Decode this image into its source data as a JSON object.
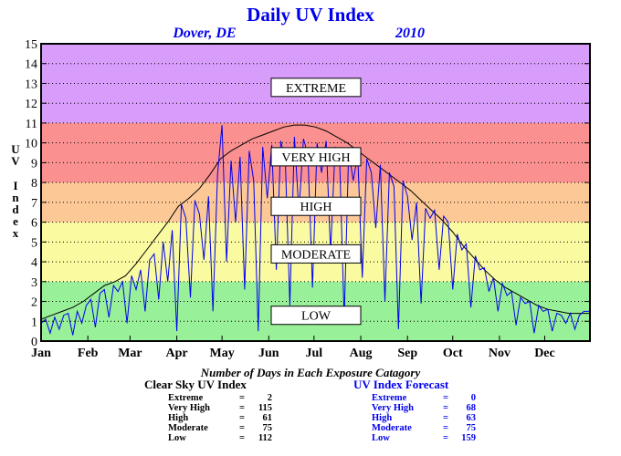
{
  "chart_data": {
    "type": "line",
    "title": "Daily UV Index",
    "location": "Dover, DE",
    "year": "2010",
    "ylabel": "UV Index",
    "ylim": [
      0,
      15
    ],
    "yticks": [
      0,
      1,
      2,
      3,
      4,
      5,
      6,
      7,
      8,
      9,
      10,
      11,
      12,
      13,
      14,
      15
    ],
    "xlim": [
      1,
      365
    ],
    "months": [
      {
        "label": "Jan",
        "start_day": 1
      },
      {
        "label": "Feb",
        "start_day": 32
      },
      {
        "label": "Mar",
        "start_day": 60
      },
      {
        "label": "Apr",
        "start_day": 91
      },
      {
        "label": "May",
        "start_day": 121
      },
      {
        "label": "Jun",
        "start_day": 152
      },
      {
        "label": "Jul",
        "start_day": 182
      },
      {
        "label": "Aug",
        "start_day": 213
      },
      {
        "label": "Sep",
        "start_day": 244
      },
      {
        "label": "Oct",
        "start_day": 274
      },
      {
        "label": "Nov",
        "start_day": 305
      },
      {
        "label": "Dec",
        "start_day": 335
      }
    ],
    "grid": true,
    "bands": [
      {
        "label": "LOW",
        "from": 0,
        "to": 3,
        "color": "#98f098",
        "label_y": 1.3
      },
      {
        "label": "MODERATE",
        "from": 3,
        "to": 6,
        "color": "#fafaa0",
        "label_y": 4.4
      },
      {
        "label": "HIGH",
        "from": 6,
        "to": 8,
        "color": "#fcc896",
        "label_y": 6.8
      },
      {
        "label": "VERY HIGH",
        "from": 8,
        "to": 11,
        "color": "#fa9090",
        "label_y": 9.3
      },
      {
        "label": "EXTREME",
        "from": 11,
        "to": 15,
        "color": "#d89cfa",
        "label_y": 12.8
      }
    ],
    "series": [
      {
        "name": "Clear Sky UV Index",
        "color": "#000000",
        "points": [
          [
            1,
            1.1
          ],
          [
            8,
            1.3
          ],
          [
            15,
            1.5
          ],
          [
            22,
            1.7
          ],
          [
            29,
            2.0
          ],
          [
            36,
            2.4
          ],
          [
            43,
            2.8
          ],
          [
            50,
            3.0
          ],
          [
            57,
            3.3
          ],
          [
            64,
            3.9
          ],
          [
            71,
            4.6
          ],
          [
            78,
            5.3
          ],
          [
            85,
            6.0
          ],
          [
            92,
            6.8
          ],
          [
            99,
            7.2
          ],
          [
            106,
            7.7
          ],
          [
            113,
            8.4
          ],
          [
            120,
            9.2
          ],
          [
            127,
            9.6
          ],
          [
            134,
            9.9
          ],
          [
            141,
            10.2
          ],
          [
            148,
            10.4
          ],
          [
            155,
            10.6
          ],
          [
            162,
            10.8
          ],
          [
            169,
            10.9
          ],
          [
            176,
            10.9
          ],
          [
            183,
            10.8
          ],
          [
            190,
            10.6
          ],
          [
            197,
            10.3
          ],
          [
            204,
            10.0
          ],
          [
            211,
            9.6
          ],
          [
            218,
            9.2
          ],
          [
            225,
            8.8
          ],
          [
            232,
            8.4
          ],
          [
            239,
            8.0
          ],
          [
            246,
            7.6
          ],
          [
            253,
            7.1
          ],
          [
            260,
            6.6
          ],
          [
            267,
            6.1
          ],
          [
            274,
            5.5
          ],
          [
            281,
            4.8
          ],
          [
            288,
            4.2
          ],
          [
            295,
            3.6
          ],
          [
            302,
            3.1
          ],
          [
            309,
            2.7
          ],
          [
            316,
            2.4
          ],
          [
            323,
            2.1
          ],
          [
            330,
            1.8
          ],
          [
            337,
            1.6
          ],
          [
            344,
            1.5
          ],
          [
            351,
            1.4
          ],
          [
            358,
            1.4
          ],
          [
            365,
            1.4
          ]
        ]
      },
      {
        "name": "UV Index Forecast",
        "color": "#0000ee",
        "points": [
          [
            1,
            0.9
          ],
          [
            4,
            1.1
          ],
          [
            7,
            0.4
          ],
          [
            10,
            1.2
          ],
          [
            13,
            0.6
          ],
          [
            16,
            1.3
          ],
          [
            19,
            1.4
          ],
          [
            22,
            0.3
          ],
          [
            25,
            1.5
          ],
          [
            28,
            0.9
          ],
          [
            31,
            1.8
          ],
          [
            34,
            2.1
          ],
          [
            37,
            0.7
          ],
          [
            40,
            2.4
          ],
          [
            43,
            2.6
          ],
          [
            46,
            1.2
          ],
          [
            49,
            2.8
          ],
          [
            52,
            2.5
          ],
          [
            55,
            3.0
          ],
          [
            58,
            0.9
          ],
          [
            61,
            3.3
          ],
          [
            64,
            2.6
          ],
          [
            67,
            3.6
          ],
          [
            70,
            1.5
          ],
          [
            73,
            4.1
          ],
          [
            76,
            4.4
          ],
          [
            79,
            2.1
          ],
          [
            82,
            5.0
          ],
          [
            85,
            3.0
          ],
          [
            88,
            5.6
          ],
          [
            91,
            0.5
          ],
          [
            94,
            6.9
          ],
          [
            97,
            6.2
          ],
          [
            100,
            2.2
          ],
          [
            103,
            7.1
          ],
          [
            106,
            6.4
          ],
          [
            109,
            4.1
          ],
          [
            112,
            7.3
          ],
          [
            115,
            1.5
          ],
          [
            118,
            8.4
          ],
          [
            121,
            10.9
          ],
          [
            124,
            4.0
          ],
          [
            127,
            9.1
          ],
          [
            130,
            6.0
          ],
          [
            133,
            9.3
          ],
          [
            136,
            2.6
          ],
          [
            139,
            9.6
          ],
          [
            142,
            8.1
          ],
          [
            145,
            0.5
          ],
          [
            148,
            9.8
          ],
          [
            151,
            7.2
          ],
          [
            154,
            9.9
          ],
          [
            157,
            3.6
          ],
          [
            160,
            10.1
          ],
          [
            163,
            9.0
          ],
          [
            166,
            1.8
          ],
          [
            169,
            10.3
          ],
          [
            172,
            6.5
          ],
          [
            175,
            10.2
          ],
          [
            178,
            9.4
          ],
          [
            181,
            2.7
          ],
          [
            184,
            10.0
          ],
          [
            187,
            8.5
          ],
          [
            190,
            10.1
          ],
          [
            193,
            4.5
          ],
          [
            196,
            9.8
          ],
          [
            199,
            9.2
          ],
          [
            202,
            1.1
          ],
          [
            205,
            9.6
          ],
          [
            208,
            8.1
          ],
          [
            211,
            9.4
          ],
          [
            214,
            3.2
          ],
          [
            217,
            9.2
          ],
          [
            220,
            8.5
          ],
          [
            223,
            5.7
          ],
          [
            226,
            8.9
          ],
          [
            229,
            2.0
          ],
          [
            232,
            8.5
          ],
          [
            235,
            7.8
          ],
          [
            238,
            0.6
          ],
          [
            241,
            8.1
          ],
          [
            244,
            7.3
          ],
          [
            247,
            5.1
          ],
          [
            250,
            7.0
          ],
          [
            253,
            1.9
          ],
          [
            256,
            6.7
          ],
          [
            259,
            6.2
          ],
          [
            262,
            6.6
          ],
          [
            265,
            3.6
          ],
          [
            268,
            6.3
          ],
          [
            271,
            6.0
          ],
          [
            274,
            2.6
          ],
          [
            277,
            5.4
          ],
          [
            280,
            4.6
          ],
          [
            283,
            4.9
          ],
          [
            286,
            1.7
          ],
          [
            289,
            4.3
          ],
          [
            292,
            3.6
          ],
          [
            295,
            3.7
          ],
          [
            298,
            2.5
          ],
          [
            301,
            3.2
          ],
          [
            304,
            1.5
          ],
          [
            307,
            2.9
          ],
          [
            310,
            2.3
          ],
          [
            313,
            2.5
          ],
          [
            316,
            0.8
          ],
          [
            319,
            2.2
          ],
          [
            322,
            1.9
          ],
          [
            325,
            2.0
          ],
          [
            328,
            0.4
          ],
          [
            331,
            1.8
          ],
          [
            334,
            1.5
          ],
          [
            337,
            1.6
          ],
          [
            340,
            0.5
          ],
          [
            343,
            1.4
          ],
          [
            346,
            1.3
          ],
          [
            349,
            0.9
          ],
          [
            352,
            1.4
          ],
          [
            355,
            0.6
          ],
          [
            358,
            1.3
          ],
          [
            361,
            1.5
          ],
          [
            365,
            1.5
          ]
        ]
      }
    ],
    "annotation": "Number of Days in Each Exposure Catagory",
    "stats": {
      "clear_sky": {
        "title": "Clear Sky UV Index",
        "rows": [
          {
            "label": "Extreme",
            "eq": "=",
            "value": "2"
          },
          {
            "label": "Very High",
            "eq": "=",
            "value": "115"
          },
          {
            "label": "High",
            "eq": "=",
            "value": "61"
          },
          {
            "label": "Moderate",
            "eq": "=",
            "value": "75"
          },
          {
            "label": "Low",
            "eq": "=",
            "value": "112"
          }
        ]
      },
      "forecast": {
        "title": "UV Index Forecast",
        "rows": [
          {
            "label": "Extreme",
            "eq": "=",
            "value": "0"
          },
          {
            "label": "Very High",
            "eq": "=",
            "value": "68"
          },
          {
            "label": "High",
            "eq": "=",
            "value": "63"
          },
          {
            "label": "Moderate",
            "eq": "=",
            "value": "75"
          },
          {
            "label": "Low",
            "eq": "=",
            "value": "159"
          }
        ]
      }
    }
  },
  "colors": {
    "title": "#0000ee",
    "forecast_text": "#0000ee",
    "clear_text": "#000000"
  }
}
